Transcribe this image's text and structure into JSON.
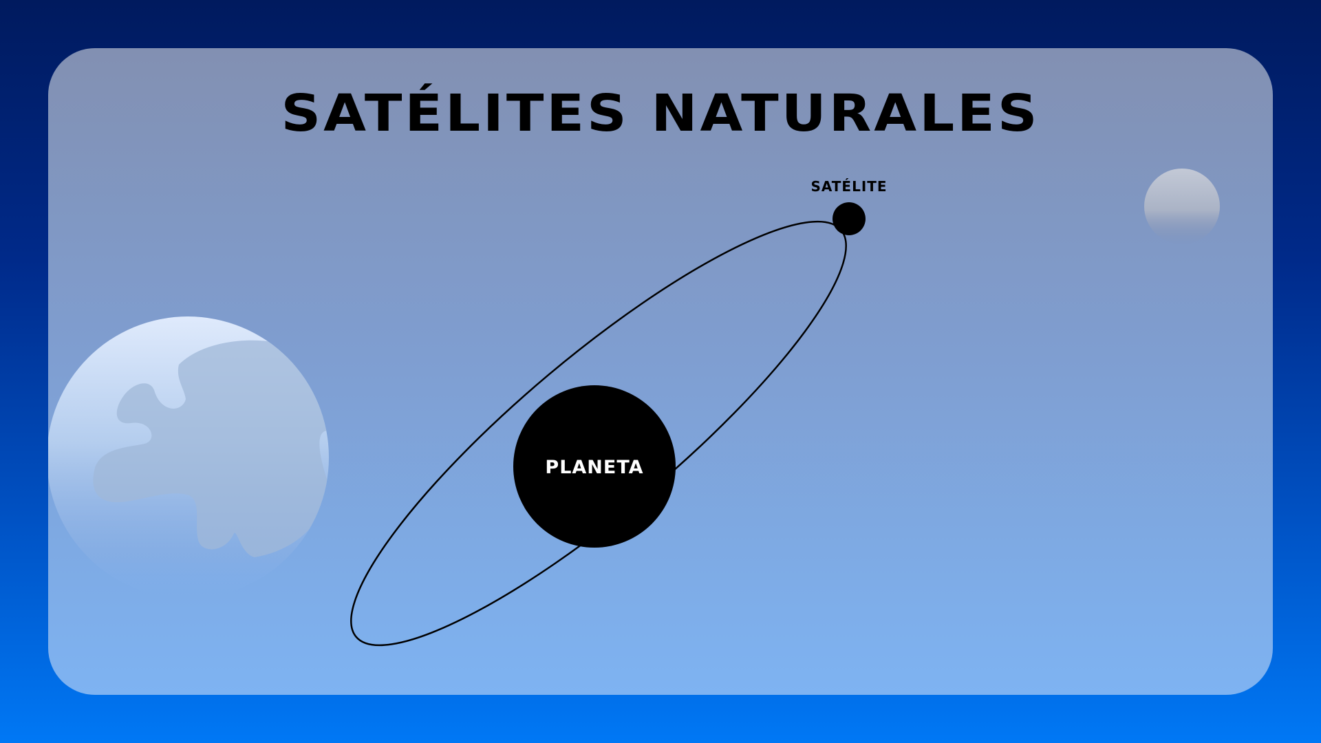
{
  "title": "SATÉLITES NATURALES",
  "diagram": {
    "planet_label": "PLANETA",
    "satellite_label": "SATÉLITE"
  },
  "colors": {
    "background_top": "#001a5e",
    "background_bottom": "#0078f5",
    "card": "#7f9dcf",
    "planet": "#000000",
    "planet_label": "#ffffff",
    "orbit": "#000000"
  },
  "icons": {
    "decoration_left": "earth-icon",
    "decoration_right": "moon-icon"
  }
}
